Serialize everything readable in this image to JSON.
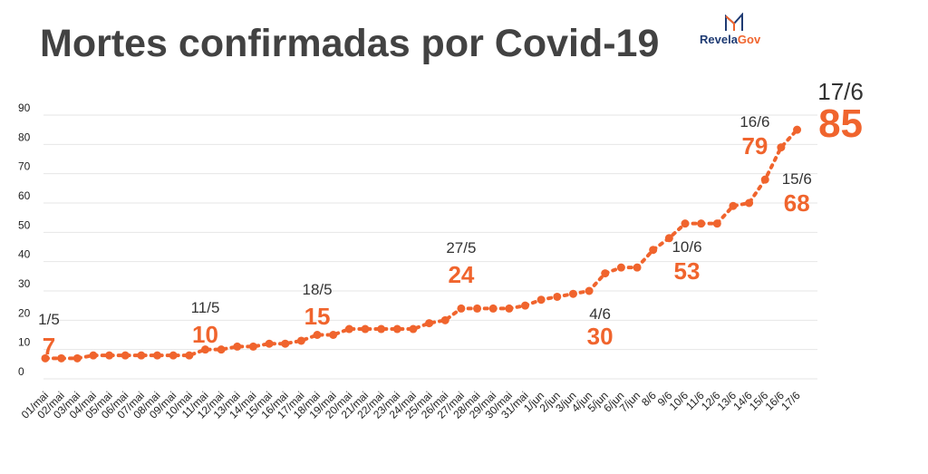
{
  "title": "Mortes confirmadas por Covid-19",
  "logo": {
    "part1": "Revela",
    "part2": "Gov"
  },
  "colors": {
    "line": "#f0642d",
    "title": "#424242",
    "grid": "#e6e6e6",
    "axis_text": "#222222",
    "brand_blue": "#1f3b73"
  },
  "chart_data": {
    "type": "line",
    "title": "Mortes confirmadas por Covid-19",
    "xlabel": "",
    "ylabel": "",
    "ylim": [
      0,
      90
    ],
    "yticks": [
      0,
      10,
      20,
      30,
      40,
      50,
      60,
      70,
      80,
      90
    ],
    "grid": true,
    "categories": [
      "01/mai",
      "02/mai",
      "03/mai",
      "04/mai",
      "05/mai",
      "06/mai",
      "07/mai",
      "08/mai",
      "09/mai",
      "10/mai",
      "11/mai",
      "12/mai",
      "13/mai",
      "14/mai",
      "15/mai",
      "16/mai",
      "17/mai",
      "18/mai",
      "19/mai",
      "20/mai",
      "21/mai",
      "22/mai",
      "23/mai",
      "24/mai",
      "25/mai",
      "26/mai",
      "27/mai",
      "28/mai",
      "29/mai",
      "30/mai",
      "31/mai",
      "1/jun",
      "2/jun",
      "3/jun",
      "4/jun",
      "5/jun",
      "6/jun",
      "7/jun",
      "8/6",
      "9/6",
      "10/6",
      "11/6",
      "12/6",
      "13/6",
      "14/6",
      "15/6",
      "16/6",
      "17/6"
    ],
    "values": [
      7,
      7,
      7,
      8,
      8,
      8,
      8,
      8,
      8,
      8,
      10,
      10,
      11,
      11,
      12,
      12,
      13,
      15,
      15,
      17,
      17,
      17,
      17,
      17,
      19,
      20,
      24,
      24,
      24,
      24,
      25,
      27,
      28,
      29,
      30,
      36,
      38,
      38,
      44,
      48,
      53,
      53,
      53,
      59,
      60,
      68,
      79,
      85
    ],
    "annotations": [
      {
        "index": 0,
        "date": "1/5",
        "value": "7"
      },
      {
        "index": 10,
        "date": "11/5",
        "value": "10"
      },
      {
        "index": 17,
        "date": "18/5",
        "value": "15"
      },
      {
        "index": 26,
        "date": "27/5",
        "value": "24"
      },
      {
        "index": 34,
        "date": "4/6",
        "value": "30"
      },
      {
        "index": 40,
        "date": "10/6",
        "value": "53"
      },
      {
        "index": 45,
        "date": "15/6",
        "value": "68"
      },
      {
        "index": 46,
        "date": "16/6",
        "value": "79"
      },
      {
        "index": 47,
        "date": "17/6",
        "value": "85"
      }
    ]
  }
}
